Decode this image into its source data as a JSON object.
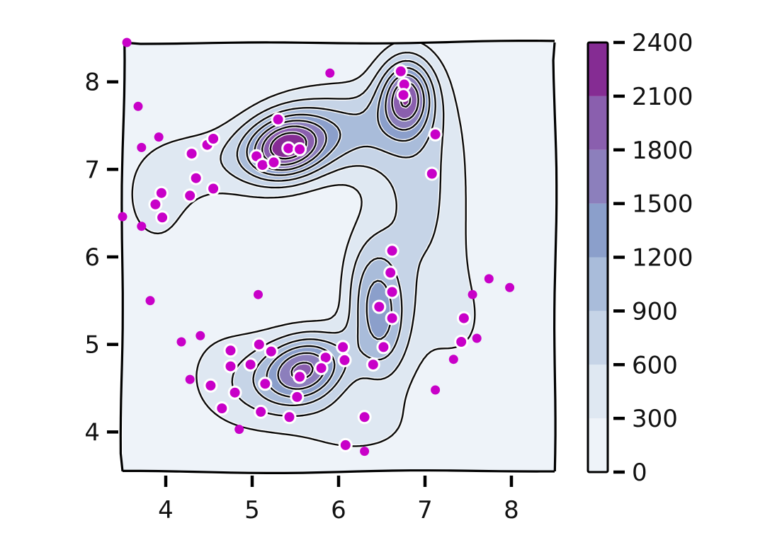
{
  "chart_data": {
    "type": "contour",
    "title": "",
    "xlabel": "",
    "ylabel": "",
    "xlim": [
      3.5,
      8.5
    ],
    "ylim": [
      3.55,
      8.45
    ],
    "x_ticks": [
      4,
      5,
      6,
      7,
      8
    ],
    "y_ticks": [
      4,
      5,
      6,
      7,
      8
    ],
    "colorbar": {
      "ticks": [
        0,
        300,
        600,
        900,
        1200,
        1500,
        1800,
        2100,
        2400
      ],
      "range": [
        0,
        2400
      ],
      "colormap": "BuPu",
      "colors": [
        "#eef3f9",
        "#dfe8f2",
        "#c6d4e7",
        "#a9bcda",
        "#8b9fcb",
        "#8c7fbc",
        "#8a5fae",
        "#852c93",
        "#6e0b6a"
      ]
    },
    "density_peaks": [
      {
        "x": 5.38,
        "y": 7.25,
        "value": 2400
      },
      {
        "x": 6.78,
        "y": 7.85,
        "value": 2150
      },
      {
        "x": 5.62,
        "y": 4.72,
        "value": 2300
      },
      {
        "x": 6.5,
        "y": 5.4,
        "value": 1750
      }
    ],
    "points": [
      {
        "x": 3.55,
        "y": 8.45
      },
      {
        "x": 3.68,
        "y": 7.72
      },
      {
        "x": 3.72,
        "y": 7.25
      },
      {
        "x": 3.92,
        "y": 7.37
      },
      {
        "x": 3.88,
        "y": 6.6
      },
      {
        "x": 3.95,
        "y": 6.73
      },
      {
        "x": 3.96,
        "y": 6.45
      },
      {
        "x": 3.72,
        "y": 6.35
      },
      {
        "x": 3.5,
        "y": 6.46
      },
      {
        "x": 4.28,
        "y": 6.7
      },
      {
        "x": 4.3,
        "y": 7.18
      },
      {
        "x": 4.35,
        "y": 6.9
      },
      {
        "x": 4.48,
        "y": 7.28
      },
      {
        "x": 4.55,
        "y": 7.35
      },
      {
        "x": 4.55,
        "y": 6.78
      },
      {
        "x": 5.9,
        "y": 8.1
      },
      {
        "x": 6.72,
        "y": 8.12
      },
      {
        "x": 6.76,
        "y": 7.97
      },
      {
        "x": 6.75,
        "y": 7.85
      },
      {
        "x": 5.3,
        "y": 7.57
      },
      {
        "x": 5.05,
        "y": 7.15
      },
      {
        "x": 5.12,
        "y": 7.05
      },
      {
        "x": 5.25,
        "y": 7.08
      },
      {
        "x": 5.42,
        "y": 7.24
      },
      {
        "x": 5.55,
        "y": 7.23
      },
      {
        "x": 7.12,
        "y": 7.4
      },
      {
        "x": 7.08,
        "y": 6.95
      },
      {
        "x": 3.82,
        "y": 5.5
      },
      {
        "x": 4.18,
        "y": 5.03
      },
      {
        "x": 4.4,
        "y": 5.1
      },
      {
        "x": 5.07,
        "y": 5.57
      },
      {
        "x": 6.62,
        "y": 6.07
      },
      {
        "x": 6.6,
        "y": 5.82
      },
      {
        "x": 6.62,
        "y": 5.6
      },
      {
        "x": 6.47,
        "y": 5.43
      },
      {
        "x": 6.62,
        "y": 5.3
      },
      {
        "x": 6.52,
        "y": 4.97
      },
      {
        "x": 6.4,
        "y": 4.77
      },
      {
        "x": 6.05,
        "y": 4.97
      },
      {
        "x": 6.07,
        "y": 4.82
      },
      {
        "x": 5.85,
        "y": 4.85
      },
      {
        "x": 5.8,
        "y": 4.73
      },
      {
        "x": 5.55,
        "y": 4.63
      },
      {
        "x": 5.52,
        "y": 4.4
      },
      {
        "x": 5.22,
        "y": 4.92
      },
      {
        "x": 5.08,
        "y": 5.0
      },
      {
        "x": 4.98,
        "y": 4.77
      },
      {
        "x": 4.75,
        "y": 4.93
      },
      {
        "x": 4.75,
        "y": 4.75
      },
      {
        "x": 5.15,
        "y": 4.55
      },
      {
        "x": 4.8,
        "y": 4.45
      },
      {
        "x": 4.65,
        "y": 4.27
      },
      {
        "x": 5.1,
        "y": 4.23
      },
      {
        "x": 5.43,
        "y": 4.17
      },
      {
        "x": 4.28,
        "y": 4.6
      },
      {
        "x": 4.52,
        "y": 4.53
      },
      {
        "x": 4.85,
        "y": 4.03
      },
      {
        "x": 6.3,
        "y": 4.17
      },
      {
        "x": 6.08,
        "y": 3.85
      },
      {
        "x": 6.3,
        "y": 3.78
      },
      {
        "x": 7.12,
        "y": 4.48
      },
      {
        "x": 7.33,
        "y": 4.83
      },
      {
        "x": 7.42,
        "y": 5.03
      },
      {
        "x": 7.6,
        "y": 5.07
      },
      {
        "x": 7.45,
        "y": 5.3
      },
      {
        "x": 7.55,
        "y": 5.57
      },
      {
        "x": 7.74,
        "y": 5.75
      },
      {
        "x": 7.98,
        "y": 5.65
      }
    ]
  }
}
